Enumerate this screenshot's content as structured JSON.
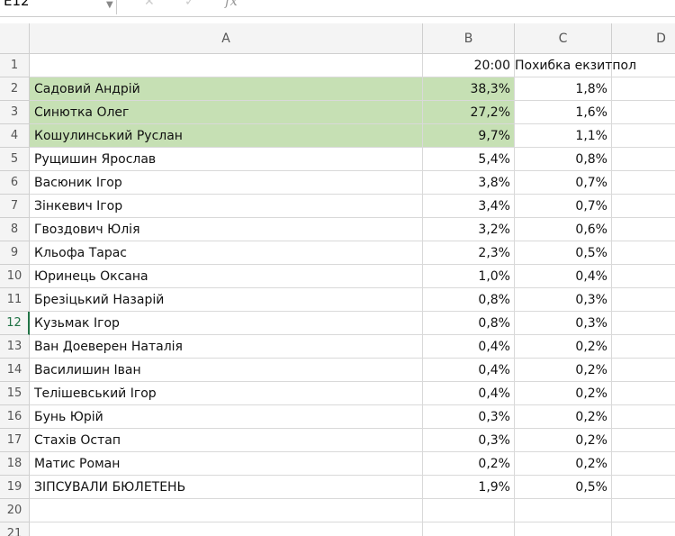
{
  "name_box": "E12",
  "formula_label": "fx",
  "columns": [
    "A",
    "B",
    "C",
    "D"
  ],
  "row_numbers": [
    1,
    2,
    3,
    4,
    5,
    6,
    7,
    8,
    9,
    10,
    11,
    12,
    13,
    14,
    15,
    16,
    17,
    18,
    19,
    20,
    21
  ],
  "selected_row": 12,
  "highlight_rows": [
    2,
    3,
    4
  ],
  "table": {
    "rows": [
      {
        "b": "20:00",
        "c": "Похибка екзитпол"
      },
      {
        "a": "Садовий Андрій",
        "b": "38,3%",
        "c": "1,8%"
      },
      {
        "a": "Синютка Олег",
        "b": "27,2%",
        "c": "1,6%"
      },
      {
        "a": "Кошулинський Руслан",
        "b": "9,7%",
        "c": "1,1%"
      },
      {
        "a": "Рущишин Ярослав",
        "b": "5,4%",
        "c": "0,8%"
      },
      {
        "a": "Васюник Ігор",
        "b": "3,8%",
        "c": "0,7%"
      },
      {
        "a": "Зінкевич Ігор",
        "b": "3,4%",
        "c": "0,7%"
      },
      {
        "a": "Гвоздович Юлія",
        "b": "3,2%",
        "c": "0,6%"
      },
      {
        "a": "Кльофа Тарас",
        "b": "2,3%",
        "c": "0,5%"
      },
      {
        "a": "Юринець Оксана",
        "b": "1,0%",
        "c": "0,4%"
      },
      {
        "a": "Брезіцький Назарій",
        "b": "0,8%",
        "c": "0,3%"
      },
      {
        "a": "Кузьмак Ігор",
        "b": "0,8%",
        "c": "0,3%"
      },
      {
        "a": "Ван Доеверен Наталія",
        "b": "0,4%",
        "c": "0,2%"
      },
      {
        "a": "Василишин Іван",
        "b": "0,4%",
        "c": "0,2%"
      },
      {
        "a": "Телішевський Ігор",
        "b": "0,4%",
        "c": "0,2%"
      },
      {
        "a": "Бунь Юрій",
        "b": "0,3%",
        "c": "0,2%"
      },
      {
        "a": "Стахів Остап",
        "b": "0,3%",
        "c": "0,2%"
      },
      {
        "a": "Матис Роман",
        "b": "0,2%",
        "c": "0,2%"
      },
      {
        "a": "ЗІПСУВАЛИ БЮЛЕТЕНЬ",
        "b": "1,9%",
        "c": "0,5%"
      }
    ]
  }
}
